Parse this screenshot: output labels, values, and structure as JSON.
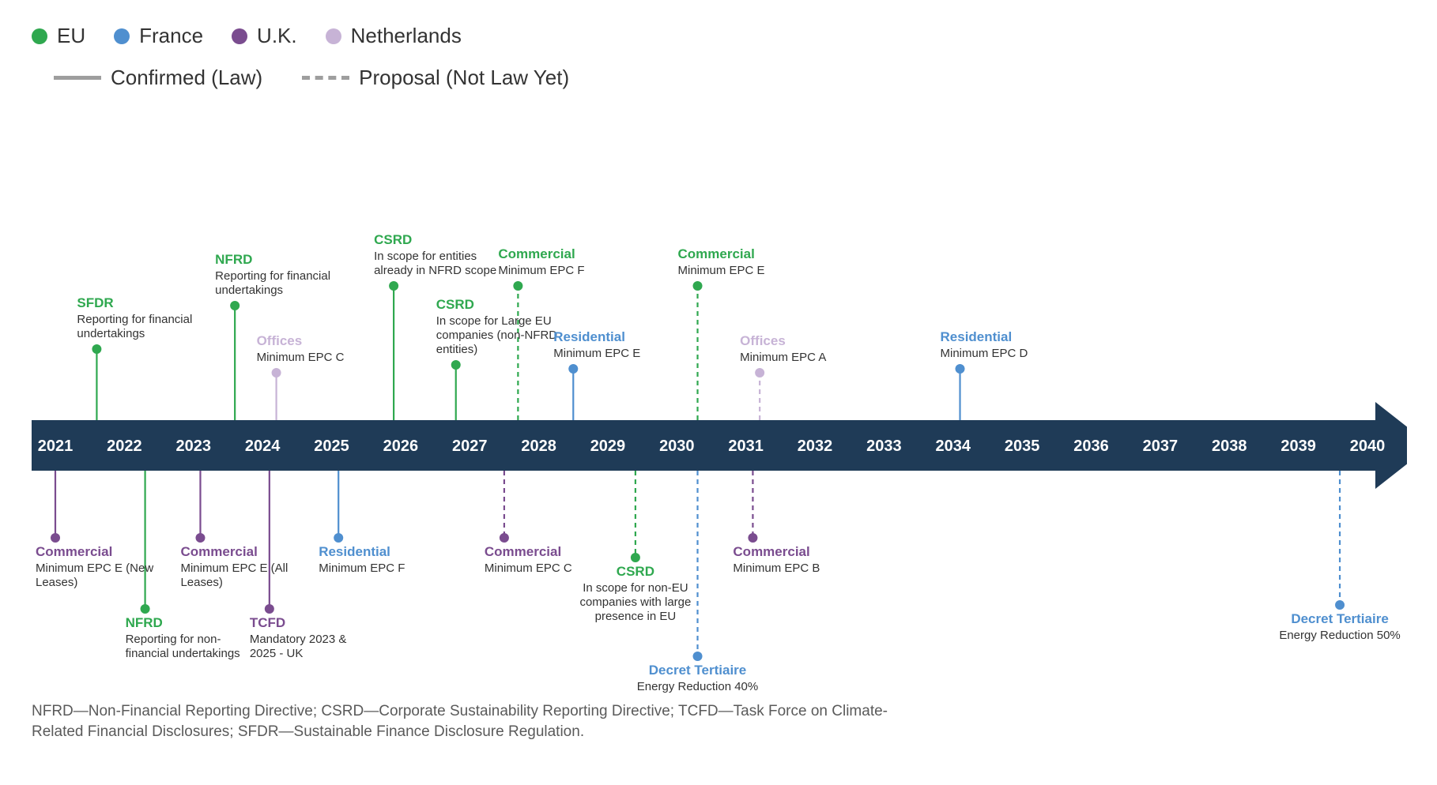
{
  "colors": {
    "eu": "#2fa84f",
    "france": "#4f8fcf",
    "uk": "#7a4c8f",
    "netherlands": "#c7b3d6",
    "arrow": "#1f3b57",
    "legendLine": "#9e9e9e",
    "text": "#333333",
    "muted": "#5a5a5a"
  },
  "legendRegions": [
    {
      "label": "EU",
      "colorKey": "eu"
    },
    {
      "label": "France",
      "colorKey": "france"
    },
    {
      "label": "U.K.",
      "colorKey": "uk"
    },
    {
      "label": "Netherlands",
      "colorKey": "netherlands"
    }
  ],
  "legendLines": [
    {
      "label": "Confirmed (Law)",
      "dash": false
    },
    {
      "label": "Proposal (Not Law Yet)",
      "dash": true
    }
  ],
  "timeline": {
    "yearStart": 2021,
    "yearEnd": 2040,
    "xStart": 30,
    "xEnd": 1690,
    "arrowTipX": 1770,
    "axisY": 440,
    "barHalfHeight": 32,
    "arrowHeadHalfHeight": 55
  },
  "events": [
    {
      "year": 2021.6,
      "side": "above",
      "stemLen": 90,
      "region": "eu",
      "dash": false,
      "title": "SFDR",
      "desc": "Reporting for financial undertakings"
    },
    {
      "year": 2023.6,
      "side": "above",
      "stemLen": 145,
      "region": "eu",
      "dash": false,
      "title": "NFRD",
      "desc": "Reporting for financial undertakings"
    },
    {
      "year": 2024.2,
      "side": "above",
      "stemLen": 60,
      "region": "netherlands",
      "dash": false,
      "title": "Offices",
      "desc": "Minimum EPC C"
    },
    {
      "year": 2025.9,
      "side": "above",
      "stemLen": 170,
      "region": "eu",
      "dash": false,
      "title": "CSRD",
      "desc": "In scope for entities already in NFRD scope"
    },
    {
      "year": 2026.8,
      "side": "above",
      "stemLen": 70,
      "region": "eu",
      "dash": false,
      "title": "CSRD",
      "desc": "In scope for Large EU companies (non-NFRD entities)"
    },
    {
      "year": 2027.7,
      "side": "above",
      "stemLen": 170,
      "region": "eu",
      "dash": true,
      "title": "Commercial",
      "desc": "Minimum EPC F"
    },
    {
      "year": 2028.5,
      "side": "above",
      "stemLen": 65,
      "region": "france",
      "dash": false,
      "title": "Residential",
      "desc": "Minimum EPC E"
    },
    {
      "year": 2030.3,
      "side": "above",
      "stemLen": 170,
      "region": "eu",
      "dash": true,
      "title": "Commercial",
      "desc": "Minimum EPC E"
    },
    {
      "year": 2031.2,
      "side": "above",
      "stemLen": 60,
      "region": "netherlands",
      "dash": true,
      "title": "Offices",
      "desc": "Minimum EPC A"
    },
    {
      "year": 2034.1,
      "side": "above",
      "stemLen": 65,
      "region": "france",
      "dash": false,
      "title": "Residential",
      "desc": "Minimum EPC D"
    },
    {
      "year": 2021.0,
      "side": "below",
      "stemLen": 85,
      "region": "uk",
      "dash": false,
      "title": "Commercial",
      "desc": "Minimum EPC E (New Leases)"
    },
    {
      "year": 2022.3,
      "side": "below",
      "stemLen": 175,
      "region": "eu",
      "dash": false,
      "title": "NFRD",
      "desc": "Reporting for non-financial undertakings"
    },
    {
      "year": 2023.1,
      "side": "below",
      "stemLen": 85,
      "region": "uk",
      "dash": false,
      "title": "Commercial",
      "desc": "Minimum EPC E (All Leases)"
    },
    {
      "year": 2024.1,
      "side": "below",
      "stemLen": 175,
      "region": "uk",
      "dash": false,
      "title": "TCFD",
      "desc": "Mandatory 2023 & 2025 - UK"
    },
    {
      "year": 2025.1,
      "side": "below",
      "stemLen": 85,
      "region": "france",
      "dash": false,
      "title": "Residential",
      "desc": "Minimum EPC F"
    },
    {
      "year": 2027.5,
      "side": "below",
      "stemLen": 85,
      "region": "uk",
      "dash": true,
      "title": "Commercial",
      "desc": "Minimum EPC C"
    },
    {
      "year": 2029.4,
      "side": "below",
      "stemLen": 110,
      "region": "eu",
      "dash": true,
      "title": "CSRD",
      "desc": "In scope for non-EU companies with large presence in EU",
      "centered": true
    },
    {
      "year": 2030.3,
      "side": "below",
      "stemLen": 235,
      "region": "france",
      "dash": true,
      "title": "Decret Tertiaire",
      "desc": "Energy Reduction 40%",
      "centered": true
    },
    {
      "year": 2031.1,
      "side": "below",
      "stemLen": 85,
      "region": "uk",
      "dash": true,
      "title": "Commercial",
      "desc": "Minimum EPC B"
    },
    {
      "year": 2039.6,
      "side": "below",
      "stemLen": 170,
      "region": "france",
      "dash": true,
      "title": "Decret Tertiaire",
      "desc": "Energy Reduction 50%",
      "centered": true
    }
  ],
  "footnote": "NFRD—Non-Financial Reporting Directive; CSRD—Corporate Sustainability Reporting Directive; TCFD—Task Force on Climate-Related Financial Disclosures; SFDR—Sustainable Finance Disclosure Regulation."
}
